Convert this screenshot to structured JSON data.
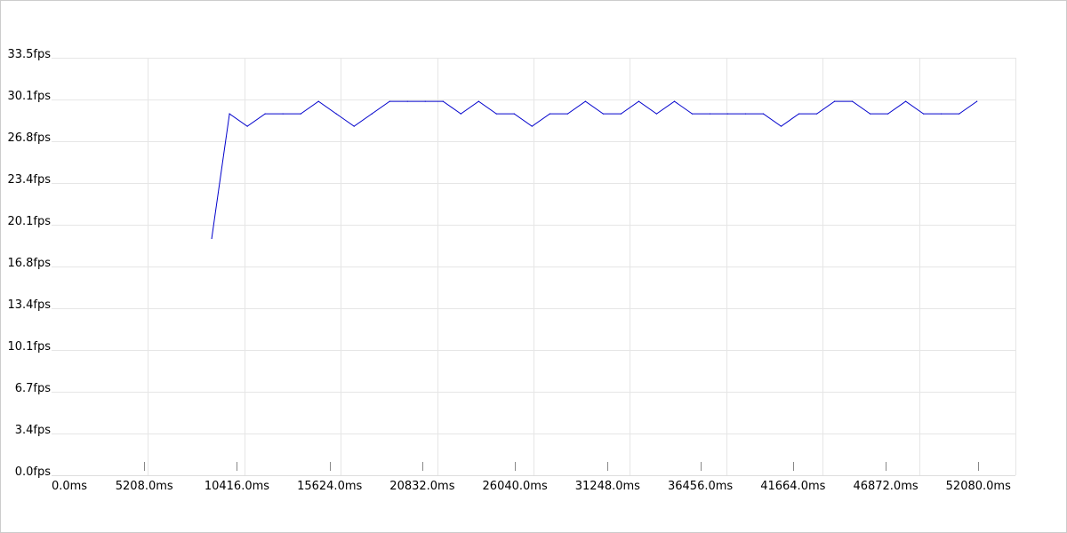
{
  "chart_data": {
    "type": "line",
    "title": "",
    "xlabel": "",
    "ylabel": "",
    "x_unit": "ms",
    "y_unit": "fps",
    "xlim": [
      0,
      54165
    ],
    "ylim": [
      0,
      33.5
    ],
    "grid": true,
    "y_ticks": [
      "0.0fps",
      "3.4fps",
      "6.7fps",
      "10.1fps",
      "13.4fps",
      "16.8fps",
      "20.1fps",
      "23.4fps",
      "26.8fps",
      "30.1fps",
      "33.5fps"
    ],
    "y_tick_values": [
      0,
      3.35,
      6.7,
      10.05,
      13.4,
      16.75,
      20.1,
      23.45,
      26.8,
      30.15,
      33.5
    ],
    "x_ticks": [
      "0.0ms",
      "5208.0ms",
      "10416.0ms",
      "15624.0ms",
      "20832.0ms",
      "26040.0ms",
      "31248.0ms",
      "36456.0ms",
      "41664.0ms",
      "46872.0ms",
      "52080.0ms"
    ],
    "x_tick_values": [
      0,
      5208,
      10416,
      15624,
      20832,
      26040,
      31248,
      36456,
      41664,
      46872,
      52080
    ],
    "x_grid_values": [
      5417,
      10833,
      16250,
      21666,
      27083,
      32499,
      37916,
      43332,
      48749,
      54165
    ],
    "series": [
      {
        "color": "#0000cc",
        "points": [
          [
            9000,
            19
          ],
          [
            10000,
            29
          ],
          [
            11000,
            28
          ],
          [
            12000,
            29
          ],
          [
            13000,
            29
          ],
          [
            14000,
            29
          ],
          [
            15000,
            30
          ],
          [
            16000,
            29
          ],
          [
            17000,
            28
          ],
          [
            18000,
            29
          ],
          [
            19000,
            30
          ],
          [
            20000,
            30
          ],
          [
            21000,
            30
          ],
          [
            22000,
            30
          ],
          [
            23000,
            29
          ],
          [
            24000,
            30
          ],
          [
            25000,
            29
          ],
          [
            26000,
            29
          ],
          [
            27000,
            28
          ],
          [
            28000,
            29
          ],
          [
            29000,
            29
          ],
          [
            30000,
            30
          ],
          [
            31000,
            29
          ],
          [
            32000,
            29
          ],
          [
            33000,
            30
          ],
          [
            34000,
            29
          ],
          [
            35000,
            30
          ],
          [
            36000,
            29
          ],
          [
            37000,
            29
          ],
          [
            38000,
            29
          ],
          [
            39000,
            29
          ],
          [
            40000,
            29
          ],
          [
            41000,
            28
          ],
          [
            42000,
            29
          ],
          [
            43000,
            29
          ],
          [
            44000,
            30
          ],
          [
            45000,
            30
          ],
          [
            46000,
            29
          ],
          [
            47000,
            29
          ],
          [
            48000,
            30
          ],
          [
            49000,
            29
          ],
          [
            50000,
            29
          ],
          [
            51000,
            29
          ],
          [
            52000,
            30
          ]
        ]
      }
    ]
  }
}
